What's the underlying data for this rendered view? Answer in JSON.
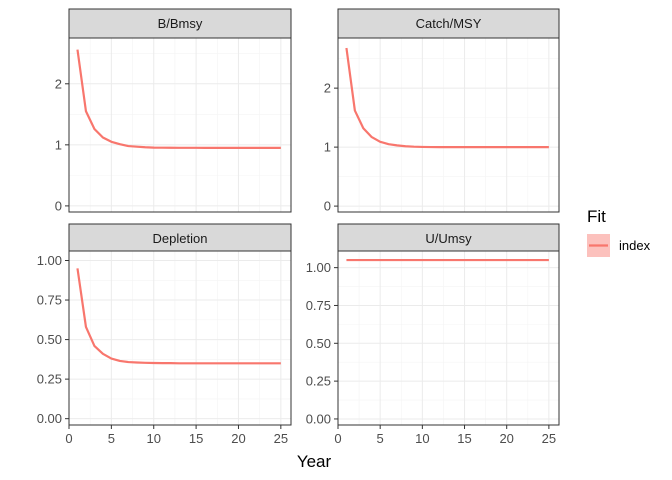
{
  "chart_data": {
    "type": "line",
    "layout": "facet-grid-2x2",
    "xlabel": "Year",
    "xlim": [
      0,
      26.2
    ],
    "xticks": [
      0,
      5,
      10,
      15,
      20,
      25
    ],
    "legend": {
      "title": "Fit",
      "placement": "right",
      "entries": [
        {
          "label": "index",
          "color": "#f8766d"
        }
      ]
    },
    "panels": [
      {
        "title": "B/Bmsy",
        "ylim": [
          -0.1,
          2.75
        ],
        "yticks": [
          0,
          1,
          2
        ],
        "series": [
          {
            "name": "index",
            "color": "#f8766d",
            "x": [
              1,
              2,
              3,
              4,
              5,
              6,
              7,
              8,
              9,
              10,
              11,
              12,
              13,
              14,
              15,
              16,
              17,
              18,
              19,
              20,
              21,
              22,
              23,
              24,
              25
            ],
            "y": [
              2.56,
              1.55,
              1.26,
              1.12,
              1.05,
              1.01,
              0.98,
              0.97,
              0.96,
              0.955,
              0.953,
              0.952,
              0.951,
              0.951,
              0.951,
              0.95,
              0.95,
              0.95,
              0.95,
              0.95,
              0.95,
              0.95,
              0.95,
              0.95,
              0.95
            ]
          }
        ]
      },
      {
        "title": "Catch/MSY",
        "ylim": [
          -0.1,
          2.85
        ],
        "yticks": [
          0,
          1,
          2
        ],
        "series": [
          {
            "name": "index",
            "color": "#f8766d",
            "x": [
              1,
              2,
              3,
              4,
              5,
              6,
              7,
              8,
              9,
              10,
              11,
              12,
              13,
              14,
              15,
              16,
              17,
              18,
              19,
              20,
              21,
              22,
              23,
              24,
              25
            ],
            "y": [
              2.68,
              1.62,
              1.32,
              1.17,
              1.09,
              1.05,
              1.03,
              1.015,
              1.007,
              1.003,
              1.001,
              1.0,
              1.0,
              1.0,
              1.0,
              1.0,
              1.0,
              1.0,
              1.0,
              1.0,
              1.0,
              1.0,
              1.0,
              1.0,
              1.0
            ]
          }
        ]
      },
      {
        "title": "Depletion",
        "ylim": [
          -0.04,
          1.06
        ],
        "yticks": [
          0,
          0.25,
          0.5,
          0.75,
          1
        ],
        "ytick_labels": [
          "0.00",
          "0.25",
          "0.50",
          "0.75",
          "1.00"
        ],
        "series": [
          {
            "name": "index",
            "color": "#f8766d",
            "x": [
              1,
              2,
              3,
              4,
              5,
              6,
              7,
              8,
              9,
              10,
              11,
              12,
              13,
              14,
              15,
              16,
              17,
              18,
              19,
              20,
              21,
              22,
              23,
              24,
              25
            ],
            "y": [
              0.95,
              0.58,
              0.46,
              0.41,
              0.38,
              0.365,
              0.358,
              0.355,
              0.353,
              0.352,
              0.351,
              0.351,
              0.35,
              0.35,
              0.35,
              0.35,
              0.35,
              0.35,
              0.35,
              0.35,
              0.35,
              0.35,
              0.35,
              0.35,
              0.35
            ]
          }
        ]
      },
      {
        "title": "U/Umsy",
        "ylim": [
          -0.04,
          1.11
        ],
        "yticks": [
          0,
          0.25,
          0.5,
          0.75,
          1
        ],
        "ytick_labels": [
          "0.00",
          "0.25",
          "0.50",
          "0.75",
          "1.00"
        ],
        "series": [
          {
            "name": "index",
            "color": "#f8766d",
            "x": [
              1,
              2,
              3,
              4,
              5,
              6,
              7,
              8,
              9,
              10,
              11,
              12,
              13,
              14,
              15,
              16,
              17,
              18,
              19,
              20,
              21,
              22,
              23,
              24,
              25
            ],
            "y": [
              1.05,
              1.05,
              1.05,
              1.05,
              1.05,
              1.05,
              1.05,
              1.05,
              1.05,
              1.05,
              1.05,
              1.05,
              1.05,
              1.05,
              1.05,
              1.05,
              1.05,
              1.05,
              1.05,
              1.05,
              1.05,
              1.05,
              1.05,
              1.05,
              1.05
            ]
          }
        ]
      }
    ]
  }
}
